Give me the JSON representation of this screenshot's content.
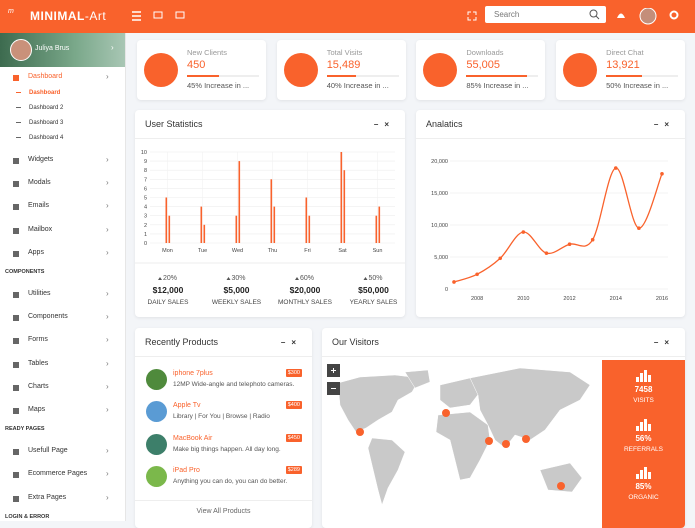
{
  "header": {
    "brand": "MINIMAL",
    "brand_suffix": "-Art",
    "search_placeholder": "Search"
  },
  "sidebar": {
    "user": "Juliya Brus",
    "dashboard": {
      "label": "Dashboard",
      "children": [
        "Dashboard",
        "Dashboard 2",
        "Dashboard 3",
        "Dashboard 4"
      ]
    },
    "menu": [
      "Widgets",
      "Modals",
      "Emails",
      "Mailbox",
      "Apps"
    ],
    "sections": [
      {
        "heading": "COMPONENTS",
        "items": [
          "Utilities",
          "Components",
          "Forms",
          "Tables",
          "Charts",
          "Maps"
        ]
      },
      {
        "heading": "READY PAGES",
        "items": [
          "Usefull Page",
          "Ecommerce Pages",
          "Extra Pages"
        ]
      },
      {
        "heading": "LOGIN & ERROR"
      }
    ]
  },
  "stats": [
    {
      "title": "New Clients",
      "value": 450,
      "note": "45% Increase in ..."
    },
    {
      "title": "Total Visits",
      "value": "15,489",
      "note": "40% Increase in ..."
    },
    {
      "title": "Downloads",
      "value": "55,005",
      "note": "85% Increase in ..."
    },
    {
      "title": "Direct Chat",
      "value": "13,921",
      "note": "50% Increase in ..."
    }
  ],
  "user_statistics": {
    "type": "bar",
    "title": "User Statistics",
    "categories": [
      "Mon",
      "Tue",
      "Wed",
      "Thu",
      "Fri",
      "Sat",
      "Sun"
    ],
    "series": [
      {
        "color": "#f9622c",
        "values": [
          5,
          4,
          3,
          7,
          5,
          10,
          3
        ]
      },
      {
        "color": "#f9622c",
        "values": [
          3,
          2,
          9,
          4,
          3,
          8,
          4
        ]
      }
    ],
    "ylim": [
      0,
      10
    ],
    "yticks": [
      0,
      1,
      2,
      3,
      4,
      5,
      6,
      7,
      8,
      9,
      10
    ],
    "grid": true,
    "summary": [
      {
        "change": "20%",
        "amount": "$12,000",
        "label": "DAILY SALES"
      },
      {
        "change": "30%",
        "amount": "$5,000",
        "label": "WEEKLY SALES"
      },
      {
        "change": "60%",
        "amount": "$20,000",
        "label": "MONTHLY SALES"
      },
      {
        "change": "50%",
        "amount": "$50,000",
        "label": "YEARLY SALES"
      }
    ]
  },
  "analytics": {
    "type": "line",
    "title": "Analatics",
    "x": [
      2007,
      2008,
      2009,
      2010,
      2011,
      2012,
      2013,
      2014,
      2015,
      2016
    ],
    "series": [
      {
        "color": "#f9622c",
        "values": [
          1100,
          2300,
          4800,
          8900,
          5600,
          7000,
          7700,
          18900,
          9500,
          18000
        ]
      }
    ],
    "xlim": [
      2007,
      2016
    ],
    "xticks": [
      2008,
      2010,
      2012,
      2014,
      2016
    ],
    "ylim": [
      0,
      20000
    ],
    "yticks": [
      0,
      {
        "value": 5000,
        "label": "5,000"
      },
      {
        "value": 10000,
        "label": "10,000"
      },
      {
        "value": 15000,
        "label": "15,000"
      },
      {
        "value": 20000,
        "label": "20,000"
      }
    ],
    "grid": true
  },
  "products": {
    "title": "Recently Products",
    "items": [
      {
        "name": "iphone 7plus",
        "price": "$300",
        "desc": "12MP Wide-angle and telephoto cameras."
      },
      {
        "name": "Apple Tv",
        "price": "$400",
        "desc": "Library | For You | Browse | Radio"
      },
      {
        "name": "MacBook Air",
        "price": "$450",
        "desc": "Make big things happen. All day long."
      },
      {
        "name": "iPad Pro",
        "price": "$289",
        "desc": "Anything you can do, you can do better."
      }
    ],
    "footer": "View All Products"
  },
  "visitors": {
    "title": "Our Visitors",
    "stats": [
      {
        "value": 7458,
        "label": "VISITS"
      },
      {
        "value": "56%",
        "label": "REFERRALS"
      },
      {
        "value": "85%",
        "label": "ORGANIC"
      }
    ]
  }
}
